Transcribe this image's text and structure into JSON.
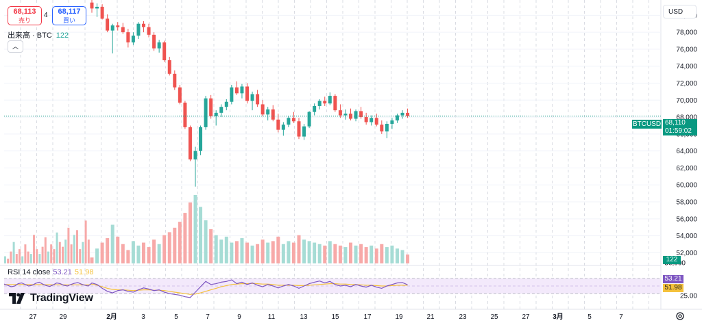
{
  "header": {
    "sell_price": "68,113",
    "sell_label": "売り",
    "spread": "4",
    "buy_price": "68,117",
    "buy_label": "買い",
    "currency": "USD"
  },
  "volume_legend": {
    "label": "出来高 · BTC",
    "value": "122"
  },
  "rsi_legend": {
    "label": "RSI 14 close",
    "rsi": "53.21",
    "rsi_ma": "51.98"
  },
  "brand": {
    "name": "TradingView"
  },
  "price_labels": {
    "symbol": "BTCUSD",
    "last": "68,110",
    "countdown": "01:59:02",
    "volume": "122",
    "rsi": "53.21",
    "rsi_ma": "51.98"
  },
  "colors": {
    "up": "#26a69a",
    "down": "#ef5350",
    "rsi": "#7e57c2",
    "rsi_ma": "#f5c23c",
    "last_price": "#089981"
  },
  "chart_data": {
    "type": "candlestick",
    "symbol": "BTCUSD",
    "price_axis": {
      "ylim": [
        50500,
        81800
      ],
      "ticks": [
        "80,000",
        "78,000",
        "76,000",
        "74,000",
        "72,000",
        "70,000",
        "68,000",
        "66,000",
        "64,000",
        "62,000",
        "60,000",
        "58,000",
        "56,000",
        "54,000",
        "52,000"
      ],
      "partial_bottom_tick": "50,000"
    },
    "rsi_axis": {
      "ylim": [
        0,
        100
      ],
      "ticks": [
        "25.00"
      ],
      "bands": [
        30,
        70
      ]
    },
    "x_axis": {
      "ticks": [
        "27",
        "29",
        "2月",
        "3",
        "5",
        "7",
        "9",
        "11",
        "13",
        "15",
        "17",
        "19",
        "21",
        "23",
        "25",
        "27",
        "3月",
        "5",
        "7"
      ]
    },
    "last_price": 68110,
    "candles": [
      [
        81500,
        81800,
        80300,
        80800
      ],
      [
        80800,
        81400,
        79800,
        81000
      ],
      [
        81000,
        81300,
        79500,
        79600
      ],
      [
        79600,
        80100,
        78000,
        78200
      ],
      [
        78200,
        79000,
        75500,
        78800
      ],
      [
        78800,
        79200,
        78200,
        78600
      ],
      [
        78600,
        79100,
        77800,
        78000
      ],
      [
        78000,
        78400,
        76200,
        76800
      ],
      [
        76800,
        78000,
        76500,
        77600
      ],
      [
        77600,
        79200,
        77200,
        79000
      ],
      [
        79000,
        79300,
        78000,
        78600
      ],
      [
        78600,
        79000,
        77400,
        77700
      ],
      [
        77700,
        78000,
        75800,
        76100
      ],
      [
        76100,
        77100,
        75600,
        76800
      ],
      [
        76800,
        77000,
        74500,
        74700
      ],
      [
        74700,
        75100,
        72900,
        73100
      ],
      [
        73100,
        73500,
        71200,
        71500
      ],
      [
        71500,
        71800,
        69500,
        69700
      ],
      [
        69700,
        69900,
        66600,
        66800
      ],
      [
        66800,
        67000,
        62800,
        63000
      ],
      [
        63000,
        64500,
        59800,
        64000
      ],
      [
        64000,
        67000,
        63500,
        66800
      ],
      [
        66800,
        70500,
        66500,
        70200
      ],
      [
        70200,
        70600,
        67800,
        68100
      ],
      [
        68100,
        68800,
        67000,
        68500
      ],
      [
        68500,
        69500,
        68000,
        69200
      ],
      [
        69200,
        70100,
        68800,
        69800
      ],
      [
        69800,
        71800,
        69500,
        71500
      ],
      [
        71500,
        72200,
        70600,
        70800
      ],
      [
        70800,
        71900,
        70200,
        71600
      ],
      [
        71600,
        72000,
        69600,
        69900
      ],
      [
        69900,
        71000,
        68800,
        70700
      ],
      [
        70700,
        71200,
        69200,
        69500
      ],
      [
        69500,
        70000,
        68100,
        68300
      ],
      [
        68300,
        69200,
        67600,
        68900
      ],
      [
        68900,
        69400,
        67500,
        67700
      ],
      [
        67700,
        68400,
        66200,
        66500
      ],
      [
        66500,
        67400,
        65800,
        67100
      ],
      [
        67100,
        68100,
        66800,
        67900
      ],
      [
        67900,
        68600,
        67300,
        67500
      ],
      [
        67500,
        67900,
        65400,
        65700
      ],
      [
        65700,
        67200,
        65300,
        66900
      ],
      [
        66900,
        68700,
        66700,
        68600
      ],
      [
        68600,
        69600,
        68200,
        69300
      ],
      [
        69300,
        70100,
        68900,
        69900
      ],
      [
        69900,
        70400,
        69300,
        69600
      ],
      [
        69600,
        70900,
        69400,
        70500
      ],
      [
        70500,
        70700,
        68600,
        68800
      ],
      [
        68800,
        69500,
        67900,
        68200
      ],
      [
        68200,
        68900,
        67700,
        68400
      ],
      [
        68400,
        69000,
        67600,
        67800
      ],
      [
        67800,
        68900,
        67500,
        68700
      ],
      [
        68700,
        69200,
        67800,
        68000
      ],
      [
        68000,
        68500,
        67100,
        67400
      ],
      [
        67400,
        68200,
        67000,
        67900
      ],
      [
        67900,
        68400,
        66900,
        67100
      ],
      [
        67100,
        67600,
        66000,
        66300
      ],
      [
        66300,
        67500,
        65500,
        67200
      ],
      [
        67200,
        67900,
        66600,
        67600
      ],
      [
        67600,
        68400,
        67300,
        68200
      ],
      [
        68200,
        68800,
        67800,
        68500
      ],
      [
        68500,
        69000,
        67900,
        68110
      ]
    ],
    "volume": [
      4,
      10,
      14,
      17,
      26,
      18,
      13,
      9,
      15,
      12,
      14,
      11,
      16,
      13,
      19,
      21,
      24,
      28,
      34,
      41,
      46,
      38,
      29,
      23,
      19,
      16,
      18,
      14,
      15,
      17,
      14,
      12,
      13,
      16,
      14,
      15,
      18,
      13,
      15,
      14,
      19,
      16,
      15,
      14,
      13,
      12,
      15,
      13,
      12,
      11,
      14,
      12,
      13,
      11,
      12,
      10,
      13,
      11,
      12,
      10,
      9,
      6
    ],
    "rsi": [
      58,
      54,
      44,
      36,
      32,
      38,
      40,
      36,
      34,
      40,
      45,
      42,
      38,
      40,
      34,
      30,
      28,
      26,
      22,
      20,
      34,
      48,
      62,
      54,
      56,
      60,
      62,
      66,
      56,
      60,
      54,
      58,
      52,
      48,
      54,
      50,
      45,
      50,
      54,
      50,
      44,
      50,
      56,
      60,
      63,
      58,
      62,
      54,
      50,
      52,
      48,
      54,
      50,
      47,
      52,
      47,
      44,
      50,
      54,
      58,
      59,
      53.21
    ],
    "rsi_ma": [
      55,
      52,
      48,
      44,
      41,
      40,
      40,
      39,
      38,
      39,
      40,
      40,
      39,
      39,
      38,
      36,
      34,
      32,
      30,
      28,
      29,
      32,
      36,
      40,
      44,
      48,
      51,
      54,
      55,
      56,
      56,
      57,
      56,
      55,
      55,
      54,
      52,
      52,
      52,
      52,
      51,
      51,
      52,
      53,
      54,
      55,
      56,
      56,
      55,
      55,
      54,
      54,
      53,
      52,
      52,
      51,
      50,
      50,
      51,
      52,
      52,
      51.98
    ]
  }
}
